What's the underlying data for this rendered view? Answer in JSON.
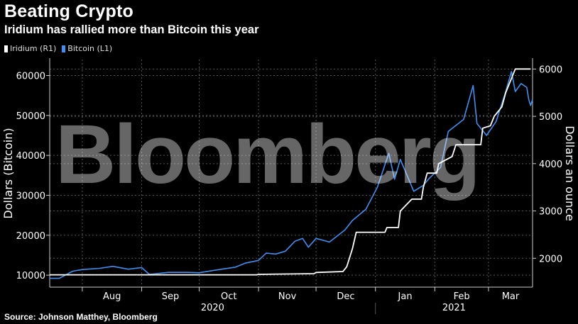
{
  "title": "Beating Crypto",
  "subtitle": "Iridium has rallied more than Bitcoin this year",
  "source": "Source: Johnson Matthey, Bloomberg",
  "watermark": "Bloomberg",
  "colors": {
    "iridium": "#ffffff",
    "bitcoin": "#3f8ff0",
    "background": "#000000",
    "grid": "#555555"
  },
  "chart_data": {
    "type": "line",
    "legend": [
      {
        "name": "Iridium (R1)",
        "color": "#ffffff"
      },
      {
        "name": "Bitcoin (L1)",
        "color": "#3f8ff0"
      }
    ],
    "legend_position": "top-left",
    "grid": true,
    "x_axis": {
      "months": [
        "Aug",
        "Sep",
        "Oct",
        "Nov",
        "Dec",
        "Jan",
        "Feb",
        "Mar"
      ],
      "years": [
        "2020",
        "2021"
      ],
      "range": [
        "2020-07-15",
        "2021-03-24"
      ]
    },
    "left_axis": {
      "label": "Dollars (Bitcoin)",
      "range": [
        7000,
        64000
      ],
      "ticks": [
        "10000",
        "20000",
        "30000",
        "40000",
        "50000",
        "60000"
      ]
    },
    "right_axis": {
      "label": "Dollars an ounce",
      "range": [
        1390,
        6200
      ],
      "ticks": [
        "2000",
        "3000",
        "4000",
        "5000",
        "6000"
      ]
    },
    "series": [
      {
        "name": "Bitcoin (L1)",
        "axis": "left",
        "color": "#3f8ff0",
        "points": [
          [
            "2020-07-15",
            9200
          ],
          [
            "2020-07-20",
            9200
          ],
          [
            "2020-07-27",
            11000
          ],
          [
            "2020-08-01",
            11400
          ],
          [
            "2020-08-10",
            11700
          ],
          [
            "2020-08-17",
            12200
          ],
          [
            "2020-08-25",
            11500
          ],
          [
            "2020-09-01",
            11900
          ],
          [
            "2020-09-05",
            10200
          ],
          [
            "2020-09-15",
            10700
          ],
          [
            "2020-09-25",
            10700
          ],
          [
            "2020-10-01",
            10600
          ],
          [
            "2020-10-10",
            11300
          ],
          [
            "2020-10-20",
            12000
          ],
          [
            "2020-10-25",
            13000
          ],
          [
            "2020-11-01",
            13700
          ],
          [
            "2020-11-05",
            15500
          ],
          [
            "2020-11-10",
            15300
          ],
          [
            "2020-11-15",
            16000
          ],
          [
            "2020-11-20",
            18500
          ],
          [
            "2020-11-24",
            19200
          ],
          [
            "2020-11-27",
            17000
          ],
          [
            "2020-12-01",
            19200
          ],
          [
            "2020-12-08",
            18300
          ],
          [
            "2020-12-16",
            21300
          ],
          [
            "2020-12-20",
            23700
          ],
          [
            "2020-12-27",
            26500
          ],
          [
            "2021-01-02",
            32000
          ],
          [
            "2021-01-08",
            40500
          ],
          [
            "2021-01-11",
            34000
          ],
          [
            "2021-01-14",
            39000
          ],
          [
            "2021-01-21",
            31000
          ],
          [
            "2021-01-26",
            32500
          ],
          [
            "2021-01-29",
            34200
          ],
          [
            "2021-02-04",
            37000
          ],
          [
            "2021-02-08",
            46000
          ],
          [
            "2021-02-12",
            47500
          ],
          [
            "2021-02-16",
            49000
          ],
          [
            "2021-02-21",
            57500
          ],
          [
            "2021-02-23",
            48000
          ],
          [
            "2021-02-28",
            45000
          ],
          [
            "2021-03-05",
            48500
          ],
          [
            "2021-03-10",
            56000
          ],
          [
            "2021-03-13",
            61000
          ],
          [
            "2021-03-15",
            56000
          ],
          [
            "2021-03-18",
            58000
          ],
          [
            "2021-03-21",
            57000
          ],
          [
            "2021-03-22",
            54000
          ],
          [
            "2021-03-23",
            52500
          ],
          [
            "2021-03-24",
            54000
          ]
        ]
      },
      {
        "name": "Iridium (R1)",
        "axis": "right",
        "color": "#ffffff",
        "points": [
          [
            "2020-07-15",
            1650
          ],
          [
            "2020-10-31",
            1650
          ],
          [
            "2020-11-01",
            1660
          ],
          [
            "2020-11-30",
            1675
          ],
          [
            "2020-12-01",
            1700
          ],
          [
            "2020-12-15",
            1720
          ],
          [
            "2020-12-17",
            1820
          ],
          [
            "2020-12-20",
            2200
          ],
          [
            "2020-12-22",
            2550
          ],
          [
            "2021-01-06",
            2550
          ],
          [
            "2021-01-07",
            2650
          ],
          [
            "2021-01-13",
            2650
          ],
          [
            "2021-01-14",
            3000
          ],
          [
            "2021-01-20",
            3250
          ],
          [
            "2021-01-25",
            3250
          ],
          [
            "2021-01-26",
            3500
          ],
          [
            "2021-01-28",
            3800
          ],
          [
            "2021-02-02",
            3800
          ],
          [
            "2021-02-03",
            4000
          ],
          [
            "2021-02-10",
            4150
          ],
          [
            "2021-02-12",
            4400
          ],
          [
            "2021-02-25",
            4400
          ],
          [
            "2021-02-26",
            4750
          ],
          [
            "2021-03-02",
            4800
          ],
          [
            "2021-03-04",
            5000
          ],
          [
            "2021-03-08",
            5200
          ],
          [
            "2021-03-10",
            5500
          ],
          [
            "2021-03-15",
            6000
          ],
          [
            "2021-03-23",
            6000
          ]
        ]
      }
    ]
  }
}
